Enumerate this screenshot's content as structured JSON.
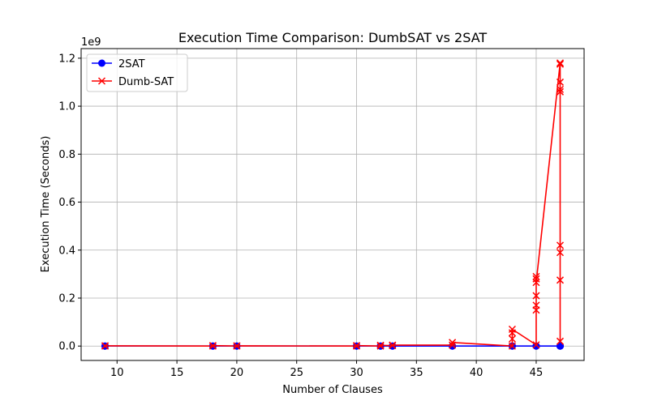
{
  "chart_data": {
    "type": "line",
    "title": "Execution Time Comparison: DumbSAT vs 2SAT",
    "xlabel": "Number of Clauses",
    "ylabel": "Execution Time (Seconds)",
    "y_scale_label": "1e9",
    "xlim": [
      7,
      49
    ],
    "ylim": [
      -0.06,
      1.24
    ],
    "x_ticks": [
      10,
      15,
      20,
      25,
      30,
      35,
      40,
      45
    ],
    "x_tick_labels": [
      "10",
      "15",
      "20",
      "25",
      "30",
      "35",
      "40",
      "45"
    ],
    "y_ticks": [
      0.0,
      0.2,
      0.4,
      0.6,
      0.8,
      1.0,
      1.2
    ],
    "y_tick_labels": [
      "0.0",
      "0.2",
      "0.4",
      "0.6",
      "0.8",
      "1.0",
      "1.2"
    ],
    "grid": true,
    "legend_position": "top-left",
    "series": [
      {
        "name": "2SAT",
        "color": "#0000ff",
        "marker": "circle",
        "points": [
          [
            9,
            0
          ],
          [
            9,
            0
          ],
          [
            18,
            0
          ],
          [
            18,
            0
          ],
          [
            20,
            0
          ],
          [
            20,
            0
          ],
          [
            30,
            0
          ],
          [
            30,
            0
          ],
          [
            32,
            0
          ],
          [
            32,
            0
          ],
          [
            33,
            0
          ],
          [
            33,
            0
          ],
          [
            38,
            0
          ],
          [
            38,
            0
          ],
          [
            43,
            0
          ],
          [
            43,
            0
          ],
          [
            45,
            0
          ],
          [
            45,
            0
          ],
          [
            47,
            0
          ],
          [
            47,
            0
          ],
          [
            47,
            0
          ]
        ]
      },
      {
        "name": "Dumb-SAT",
        "color": "#ff0000",
        "marker": "x",
        "points": [
          [
            9,
            0
          ],
          [
            9,
            0.001
          ],
          [
            18,
            0
          ],
          [
            18,
            0.002
          ],
          [
            20,
            0
          ],
          [
            20,
            0.001
          ],
          [
            30,
            0
          ],
          [
            30,
            0.002
          ],
          [
            32,
            0
          ],
          [
            32,
            0.003
          ],
          [
            33,
            0.002
          ],
          [
            33,
            0.004
          ],
          [
            38,
            0.004
          ],
          [
            38,
            0.015
          ],
          [
            43,
            0.0
          ],
          [
            43,
            0.03
          ],
          [
            43,
            0.055
          ],
          [
            43,
            0.07
          ],
          [
            45,
            0.005
          ],
          [
            45,
            0.15
          ],
          [
            45,
            0.17
          ],
          [
            45,
            0.21
          ],
          [
            45,
            0.28
          ],
          [
            45,
            0.29
          ],
          [
            45,
            0.265
          ],
          [
            47,
            1.18
          ],
          [
            47,
            1.175
          ],
          [
            47,
            1.1
          ],
          [
            47,
            1.07
          ],
          [
            47,
            1.06
          ],
          [
            47,
            0.42
          ],
          [
            47,
            0.39
          ],
          [
            47,
            0.275
          ],
          [
            47,
            0.02
          ]
        ]
      }
    ]
  }
}
